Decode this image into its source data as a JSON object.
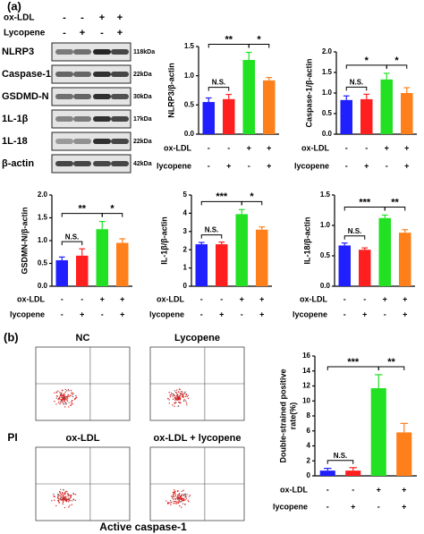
{
  "panel_labels": [
    "(a)",
    "(b)"
  ],
  "blot": {
    "header": [
      {
        "label": "ox-LDL",
        "signs": [
          "-",
          "-",
          "+",
          "+"
        ]
      },
      {
        "label": "Lycopene",
        "signs": [
          "-",
          "+",
          "-",
          "+"
        ]
      }
    ],
    "rows": [
      {
        "name": "NLRP3",
        "size": "118kDa"
      },
      {
        "name": "Caspase-1",
        "size": "22kDa"
      },
      {
        "name": "GSDMD-N",
        "size": "30kDa"
      },
      {
        "name": "1L-1β",
        "size": "17kDa"
      },
      {
        "name": "1L-18",
        "size": "22kDa"
      },
      {
        "name": "β-actin",
        "size": "42kDa"
      }
    ]
  },
  "flow": {
    "panels": [
      "NC",
      "Lycopene",
      "ox-LDL",
      "ox-LDL + lycopene"
    ],
    "y_label": "PI",
    "x_label": "Active caspase-1"
  },
  "chart_data": [
    {
      "type": "bar",
      "y_label": "NLRP3/β-actin",
      "categories": [
        null,
        null,
        null,
        null
      ],
      "values": [
        0.55,
        0.6,
        1.27,
        0.92
      ],
      "errors": [
        0.07,
        0.08,
        0.13,
        0.05
      ],
      "colors": [
        "#1f1fff",
        "#ff1f1f",
        "#22e022",
        "#ff7f1a"
      ],
      "ylim": [
        0,
        1.5
      ],
      "yticks": [
        {
          "value": 0,
          "label": "0.0"
        },
        0.5,
        {
          "value": 1,
          "label": "1.0"
        },
        1.5
      ],
      "annotations": [
        "**",
        "*",
        "N.S."
      ],
      "conditions": [
        {
          "label": "ox-LDL",
          "signs": [
            "-",
            "-",
            "+",
            "+"
          ]
        },
        {
          "label": "lycopene",
          "signs": [
            "-",
            "+",
            "-",
            "+"
          ]
        }
      ]
    },
    {
      "type": "bar",
      "y_label": "Caspase-1/β-actin",
      "categories": [
        null,
        null,
        null,
        null
      ],
      "values": [
        0.83,
        0.85,
        1.33,
        1.0
      ],
      "errors": [
        0.1,
        0.12,
        0.15,
        0.13
      ],
      "colors": [
        "#1f1fff",
        "#ff1f1f",
        "#22e022",
        "#ff7f1a"
      ],
      "ylim": [
        0,
        2
      ],
      "yticks": [
        {
          "value": 0,
          "label": "0.0"
        },
        0.5,
        {
          "value": 1,
          "label": "1.0"
        },
        1.5,
        {
          "value": 2,
          "label": "2.0"
        }
      ],
      "annotations": [
        "*",
        "*",
        "N.S."
      ],
      "conditions": [
        {
          "label": "ox-LDL",
          "signs": [
            "-",
            "-",
            "+",
            "+"
          ]
        },
        {
          "label": "lycopene",
          "signs": [
            "-",
            "+",
            "-",
            "+"
          ]
        }
      ]
    },
    {
      "type": "bar",
      "y_label": "GSDMN-N/β-actin",
      "categories": [
        null,
        null,
        null,
        null
      ],
      "values": [
        0.57,
        0.67,
        1.25,
        0.95
      ],
      "errors": [
        0.07,
        0.15,
        0.17,
        0.09
      ],
      "colors": [
        "#1f1fff",
        "#ff1f1f",
        "#22e022",
        "#ff7f1a"
      ],
      "ylim": [
        0,
        2
      ],
      "yticks": [
        {
          "value": 0,
          "label": "0.0"
        },
        0.5,
        {
          "value": 1,
          "label": "1.0"
        },
        1.5,
        {
          "value": 2,
          "label": "2.0"
        }
      ],
      "annotations": [
        "**",
        "*",
        "N.S."
      ],
      "conditions": [
        {
          "label": "ox-LDL",
          "signs": [
            "-",
            "-",
            "+",
            "+"
          ]
        },
        {
          "label": "lycopene",
          "signs": [
            "-",
            "+",
            "-",
            "+"
          ]
        }
      ]
    },
    {
      "type": "bar",
      "y_label": "IL-1β/β-actin",
      "categories": [
        null,
        null,
        null,
        null
      ],
      "values": [
        2.3,
        2.3,
        3.95,
        3.1
      ],
      "errors": [
        0.1,
        0.12,
        0.25,
        0.15
      ],
      "colors": [
        "#1f1fff",
        "#ff1f1f",
        "#22e022",
        "#ff7f1a"
      ],
      "ylim": [
        0,
        5
      ],
      "yticks": [
        0,
        1,
        2,
        3,
        4,
        5
      ],
      "annotations": [
        "***",
        "*",
        "N.S."
      ],
      "conditions": [
        {
          "label": "ox-LDL",
          "signs": [
            "-",
            "-",
            "+",
            "+"
          ]
        },
        {
          "label": "lycopene",
          "signs": [
            "-",
            "+",
            "-",
            "+"
          ]
        }
      ]
    },
    {
      "type": "bar",
      "y_label": "IL-18/β-actin",
      "categories": [
        null,
        null,
        null,
        null
      ],
      "values": [
        0.67,
        0.6,
        1.12,
        0.88
      ],
      "errors": [
        0.04,
        0.03,
        0.05,
        0.05
      ],
      "colors": [
        "#1f1fff",
        "#ff1f1f",
        "#22e022",
        "#ff7f1a"
      ],
      "ylim": [
        0,
        1.5
      ],
      "yticks": [
        {
          "value": 0,
          "label": "0.0"
        },
        0.5,
        {
          "value": 1,
          "label": "1.0"
        },
        1.5
      ],
      "annotations": [
        "***",
        "**",
        "N.S."
      ],
      "conditions": [
        {
          "label": "ox-LDL",
          "signs": [
            "-",
            "-",
            "+",
            "+"
          ]
        },
        {
          "label": "lycopene",
          "signs": [
            "-",
            "+",
            "-",
            "+"
          ]
        }
      ]
    },
    {
      "type": "bar",
      "y_label": [
        "Double-strained positive",
        "rate(%)"
      ],
      "categories": [
        null,
        null,
        null,
        null
      ],
      "values": [
        0.7,
        0.7,
        11.7,
        5.8
      ],
      "errors": [
        0.3,
        0.4,
        1.8,
        1.2
      ],
      "colors": [
        "#1f1fff",
        "#ff1f1f",
        "#22e022",
        "#ff7f1a"
      ],
      "ylim": [
        0,
        16
      ],
      "yticks": [
        0,
        2,
        4,
        6,
        8,
        10,
        12,
        14,
        16
      ],
      "annotations": [
        "***",
        "**",
        "N.S."
      ],
      "conditions": [
        {
          "label": "ox-LDL",
          "signs": [
            "-",
            "-",
            "+",
            "+"
          ]
        },
        {
          "label": "lycopene",
          "signs": [
            "-",
            "+",
            "-",
            "+"
          ]
        }
      ]
    }
  ]
}
